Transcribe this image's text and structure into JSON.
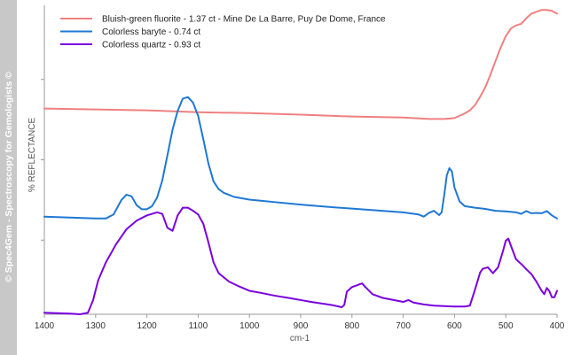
{
  "watermark": "© Spec4Gem - Spectroscopy for Gemologists ©",
  "colors": {
    "watermark_bg": "#c8c8c8",
    "axis": "#9a9a9a",
    "tick_text": "#333333"
  },
  "chart_data": {
    "type": "line",
    "title": "",
    "xlabel": "cm-1",
    "ylabel": "% REFLECTANCE",
    "xlim": [
      1400,
      400
    ],
    "x_reversed": true,
    "ylim": [
      0,
      100
    ],
    "y_tick_labels_shown": false,
    "y_tick_values": [
      24,
      50,
      76
    ],
    "x_ticks": [
      1400,
      1300,
      1200,
      1100,
      1000,
      900,
      800,
      700,
      600,
      500,
      400
    ],
    "x_tick_labels": [
      "1400",
      "1300",
      "1200",
      "1100",
      "1000",
      "900",
      "800",
      "700",
      "600",
      "500",
      "400"
    ],
    "grid": false,
    "legend_position": "top-left",
    "series": [
      {
        "name": "Bluish-green fluorite - 1.37 ct - Mine De La Barre, Puy De Dome, France",
        "color": "#f08080",
        "points": [
          [
            1400,
            66.6
          ],
          [
            1300,
            66.3
          ],
          [
            1200,
            66
          ],
          [
            1100,
            65.4
          ],
          [
            1000,
            65.1
          ],
          [
            900,
            64.6
          ],
          [
            800,
            64
          ],
          [
            700,
            63.7
          ],
          [
            650,
            63.2
          ],
          [
            620,
            63.2
          ],
          [
            600,
            63.5
          ],
          [
            580,
            65
          ],
          [
            570,
            66
          ],
          [
            560,
            67.7
          ],
          [
            550,
            70.4
          ],
          [
            540,
            73.5
          ],
          [
            530,
            77.5
          ],
          [
            520,
            82
          ],
          [
            510,
            86.3
          ],
          [
            500,
            90
          ],
          [
            490,
            92.5
          ],
          [
            480,
            93.5
          ],
          [
            470,
            94
          ],
          [
            460,
            95.8
          ],
          [
            450,
            97.3
          ],
          [
            440,
            97.9
          ],
          [
            430,
            98.5
          ],
          [
            420,
            98.5
          ],
          [
            410,
            98.2
          ],
          [
            400,
            97.3
          ]
        ]
      },
      {
        "name": "Colorless baryte - 0.74 ct",
        "color": "#1f78d4",
        "points": [
          [
            1400,
            31.6
          ],
          [
            1350,
            31.3
          ],
          [
            1300,
            31
          ],
          [
            1280,
            31
          ],
          [
            1265,
            32.3
          ],
          [
            1250,
            36.9
          ],
          [
            1240,
            38.7
          ],
          [
            1230,
            38.2
          ],
          [
            1220,
            35.3
          ],
          [
            1210,
            34
          ],
          [
            1200,
            34
          ],
          [
            1190,
            35
          ],
          [
            1180,
            37.8
          ],
          [
            1170,
            43.3
          ],
          [
            1160,
            51.4
          ],
          [
            1150,
            59.7
          ],
          [
            1140,
            65.8
          ],
          [
            1130,
            69.8
          ],
          [
            1120,
            70.3
          ],
          [
            1110,
            68.5
          ],
          [
            1100,
            64.2
          ],
          [
            1090,
            56.7
          ],
          [
            1080,
            48.8
          ],
          [
            1070,
            43
          ],
          [
            1060,
            40.5
          ],
          [
            1050,
            39.3
          ],
          [
            1030,
            38
          ],
          [
            1000,
            37.1
          ],
          [
            980,
            36.8
          ],
          [
            950,
            36.3
          ],
          [
            900,
            35.5
          ],
          [
            850,
            34.8
          ],
          [
            800,
            34.2
          ],
          [
            750,
            33.6
          ],
          [
            700,
            33
          ],
          [
            670,
            32.3
          ],
          [
            660,
            31.6
          ],
          [
            650,
            32.8
          ],
          [
            640,
            33.5
          ],
          [
            630,
            32.1
          ],
          [
            625,
            33
          ],
          [
            620,
            38.6
          ],
          [
            615,
            45
          ],
          [
            610,
            47.3
          ],
          [
            605,
            46.2
          ],
          [
            600,
            41
          ],
          [
            590,
            36.5
          ],
          [
            580,
            35
          ],
          [
            560,
            34.5
          ],
          [
            540,
            34.1
          ],
          [
            520,
            33.5
          ],
          [
            500,
            33.3
          ],
          [
            480,
            33
          ],
          [
            470,
            32.5
          ],
          [
            460,
            33.4
          ],
          [
            450,
            32.7
          ],
          [
            440,
            32.8
          ],
          [
            430,
            32.7
          ],
          [
            420,
            33.4
          ],
          [
            410,
            32
          ],
          [
            400,
            31
          ]
        ]
      },
      {
        "name": "Colorless quartz - 0.93 ct",
        "color": "#7a00e0",
        "points": [
          [
            1400,
            0.5
          ],
          [
            1350,
            0.2
          ],
          [
            1330,
            0
          ],
          [
            1315,
            0.5
          ],
          [
            1305,
            4.5
          ],
          [
            1295,
            11
          ],
          [
            1280,
            16.8
          ],
          [
            1260,
            22.7
          ],
          [
            1240,
            27.5
          ],
          [
            1220,
            30.3
          ],
          [
            1200,
            32
          ],
          [
            1190,
            32.5
          ],
          [
            1180,
            33
          ],
          [
            1170,
            32.5
          ],
          [
            1160,
            28
          ],
          [
            1150,
            27
          ],
          [
            1140,
            32
          ],
          [
            1130,
            34.5
          ],
          [
            1120,
            34.5
          ],
          [
            1110,
            33.5
          ],
          [
            1100,
            32.3
          ],
          [
            1090,
            29.3
          ],
          [
            1080,
            23.3
          ],
          [
            1070,
            16.8
          ],
          [
            1060,
            13.3
          ],
          [
            1040,
            10.6
          ],
          [
            1020,
            9
          ],
          [
            1000,
            7.6
          ],
          [
            980,
            7
          ],
          [
            950,
            6
          ],
          [
            920,
            5.2
          ],
          [
            900,
            4.6
          ],
          [
            880,
            4
          ],
          [
            860,
            3.5
          ],
          [
            840,
            3
          ],
          [
            820,
            2.3
          ],
          [
            815,
            3
          ],
          [
            810,
            7.3
          ],
          [
            800,
            8.8
          ],
          [
            790,
            9.4
          ],
          [
            780,
            10
          ],
          [
            775,
            9
          ],
          [
            760,
            6.5
          ],
          [
            740,
            5.3
          ],
          [
            700,
            4
          ],
          [
            690,
            4.6
          ],
          [
            680,
            3.8
          ],
          [
            660,
            3.2
          ],
          [
            640,
            2.8
          ],
          [
            600,
            2.5
          ],
          [
            580,
            2.5
          ],
          [
            570,
            2.8
          ],
          [
            560,
            8
          ],
          [
            550,
            13.5
          ],
          [
            545,
            14.7
          ],
          [
            535,
            15.2
          ],
          [
            525,
            13.3
          ],
          [
            515,
            15.2
          ],
          [
            505,
            20.7
          ],
          [
            500,
            23.8
          ],
          [
            495,
            24.5
          ],
          [
            490,
            22.2
          ],
          [
            480,
            17.8
          ],
          [
            470,
            16.3
          ],
          [
            460,
            14.6
          ],
          [
            450,
            13
          ],
          [
            440,
            10.5
          ],
          [
            430,
            7.6
          ],
          [
            425,
            6.5
          ],
          [
            420,
            8.5
          ],
          [
            415,
            7.5
          ],
          [
            410,
            5.5
          ],
          [
            405,
            5.5
          ],
          [
            400,
            7.6
          ]
        ]
      }
    ]
  }
}
